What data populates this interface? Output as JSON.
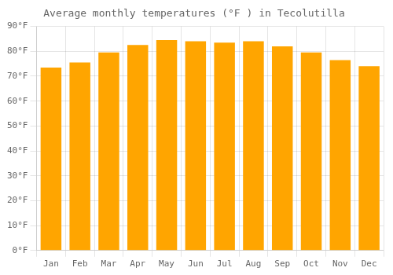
{
  "chart_data": {
    "type": "bar",
    "title": "Average monthly temperatures (°F ) in Tecolutilla",
    "categories": [
      "Jan",
      "Feb",
      "Mar",
      "Apr",
      "May",
      "Jun",
      "Jul",
      "Aug",
      "Sep",
      "Oct",
      "Nov",
      "Dec"
    ],
    "values": [
      73.5,
      75.5,
      79.5,
      82.5,
      84.5,
      84.0,
      83.5,
      84.0,
      82.0,
      79.5,
      76.5,
      74.0
    ],
    "color": "#FFA500",
    "ylim": [
      0,
      90
    ],
    "yticks": [
      {
        "value": 0,
        "label": "0°F"
      },
      {
        "value": 10,
        "label": "10°F"
      },
      {
        "value": 20,
        "label": "20°F"
      },
      {
        "value": 30,
        "label": "30°F"
      },
      {
        "value": 40,
        "label": "40°F"
      },
      {
        "value": 50,
        "label": "50°F"
      },
      {
        "value": 60,
        "label": "60°F"
      },
      {
        "value": 70,
        "label": "70°F"
      },
      {
        "value": 80,
        "label": "80°F"
      },
      {
        "value": 90,
        "label": "90°F"
      }
    ],
    "grid": true
  }
}
